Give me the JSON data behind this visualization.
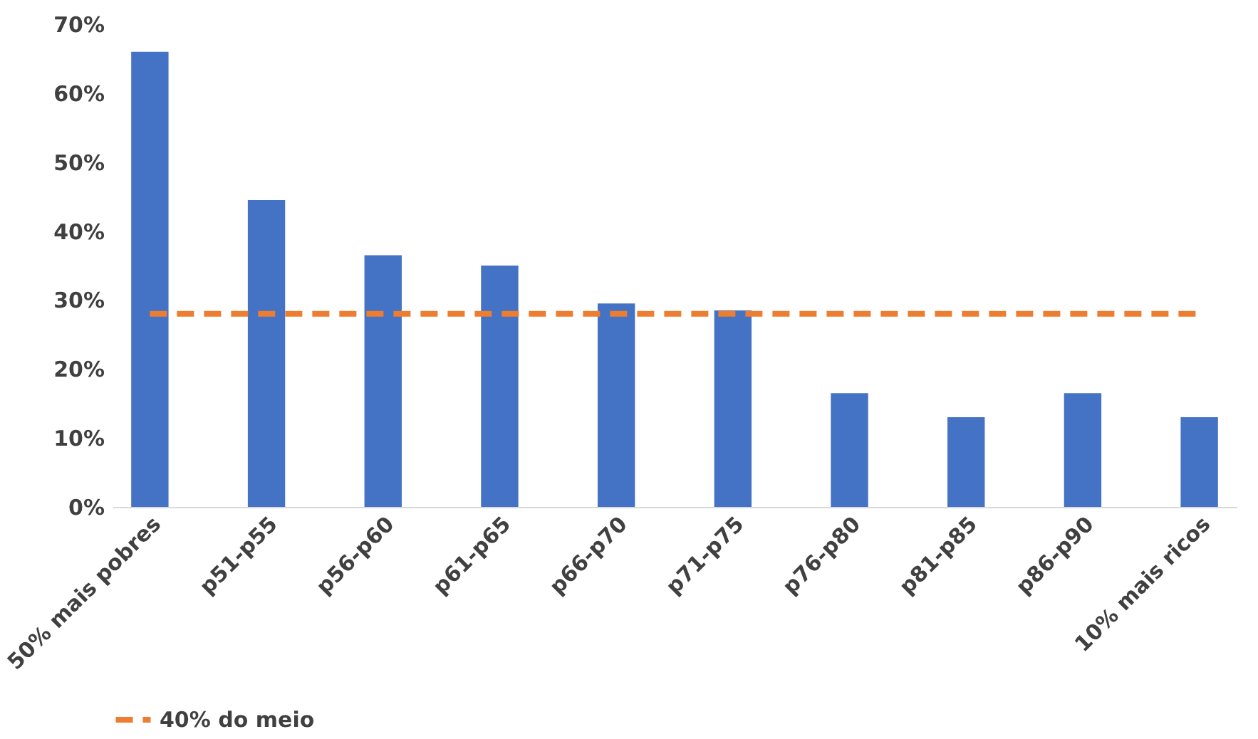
{
  "chart_data": {
    "type": "bar",
    "categories": [
      "50% mais pobres",
      "p51-p55",
      "p56-p60",
      "p61-p65",
      "p66-p70",
      "p71-p75",
      "p76-p80",
      "p81-p85",
      "p86-p90",
      "10% mais ricos"
    ],
    "series": [
      {
        "color": "#4472c4",
        "values": [
          66,
          44.5,
          36.5,
          35,
          29.5,
          28.5,
          16.5,
          13,
          16.5,
          13
        ]
      },
      {
        "name": "40% do meio",
        "type": "line",
        "line_style": "dashed",
        "color": "#ed7d31",
        "values": [
          28,
          28,
          28,
          28,
          28,
          28,
          28,
          28,
          28,
          28
        ]
      }
    ],
    "ylim": [
      0,
      70
    ],
    "yticks": [
      {
        "value": 0,
        "label": "0%"
      },
      {
        "value": 10,
        "label": "10%"
      },
      {
        "value": 20,
        "label": "20%"
      },
      {
        "value": 30,
        "label": "30%"
      },
      {
        "value": 40,
        "label": "40%"
      },
      {
        "value": 50,
        "label": "50%"
      },
      {
        "value": 60,
        "label": "60%"
      },
      {
        "value": 70,
        "label": "70%"
      }
    ],
    "grid": false,
    "legend": "bottom"
  }
}
